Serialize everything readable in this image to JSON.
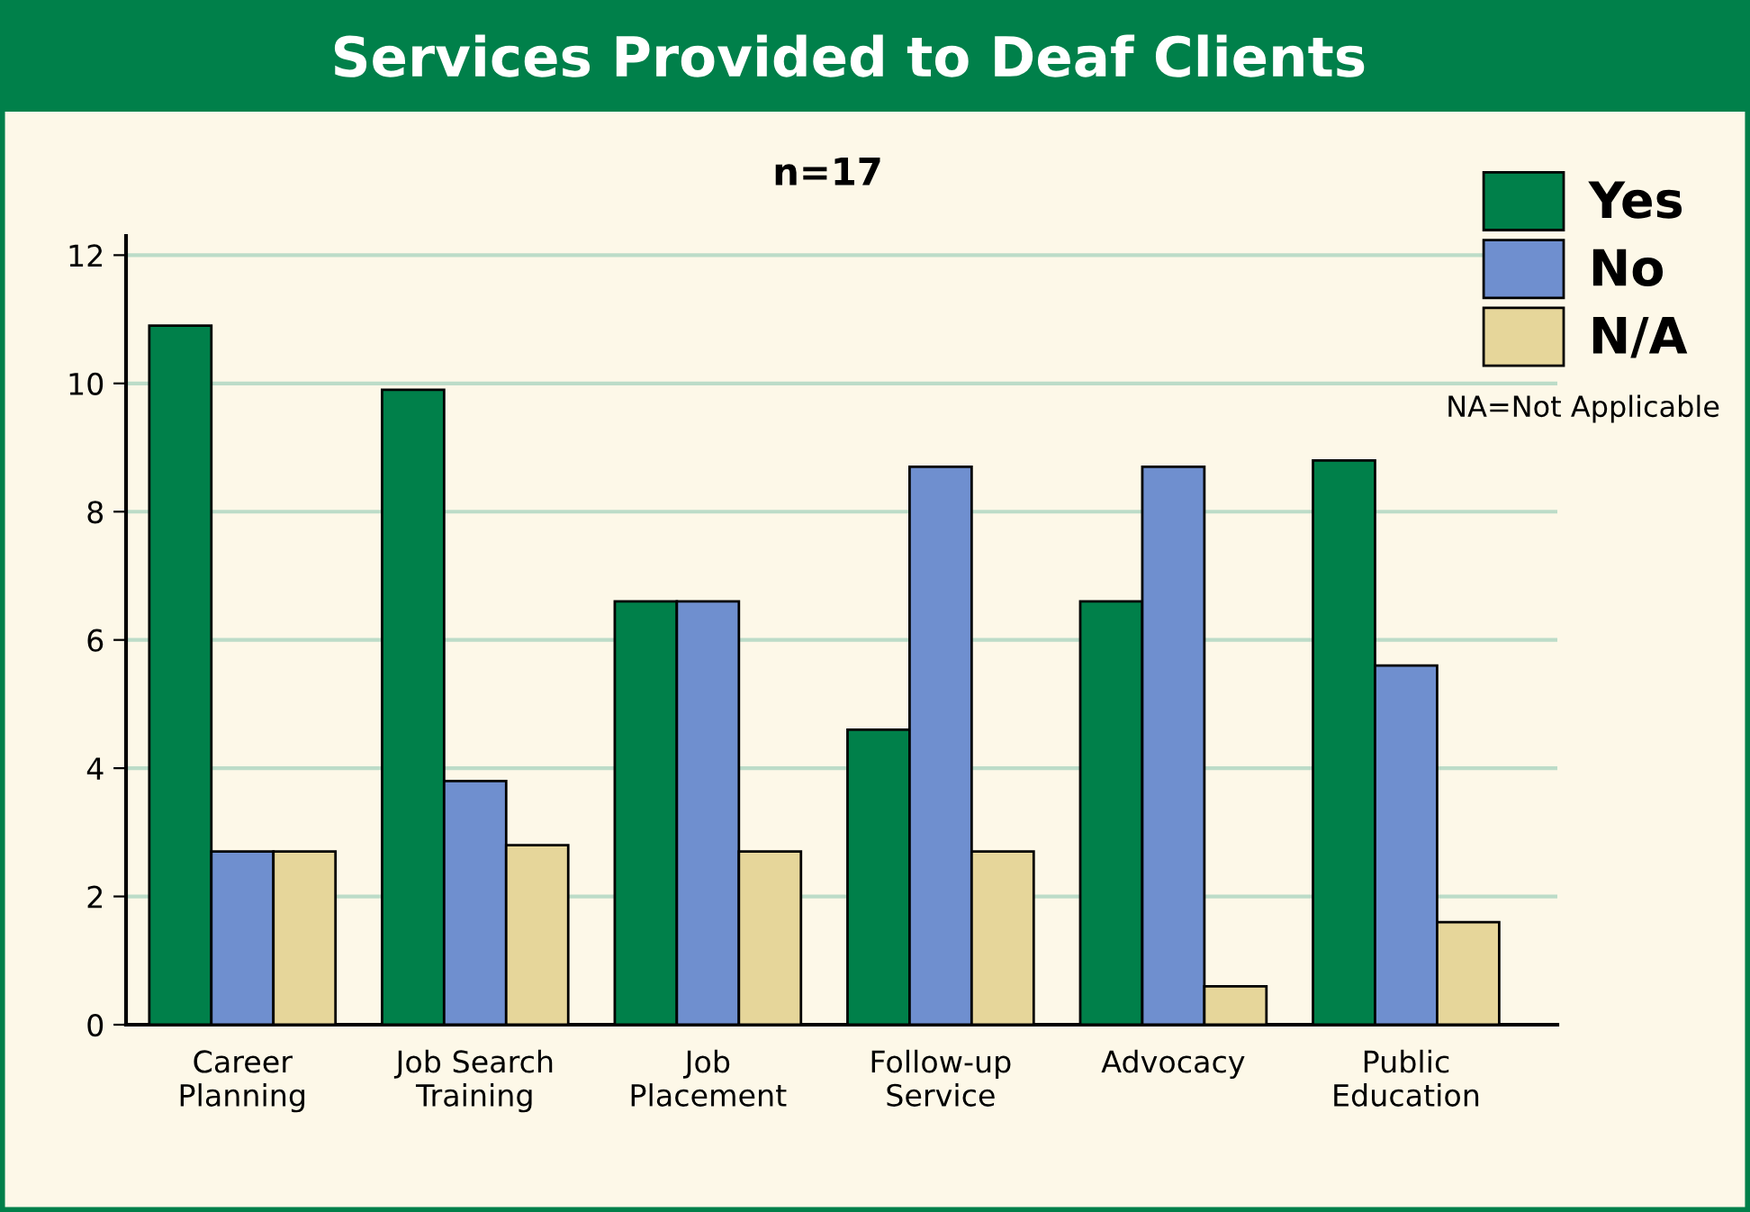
{
  "chart_data": {
    "type": "bar",
    "title": "Services Provided to Deaf Clients",
    "subtitle": "n=17",
    "categories": [
      "Career\nPlanning",
      "Job Search\nTraining",
      "Job\nPlacement",
      "Follow-up\nService",
      "Advocacy",
      "Public\nEducation"
    ],
    "series": [
      {
        "name": "Yes",
        "color": "#00804a",
        "values": [
          10.9,
          9.9,
          6.6,
          4.6,
          6.6,
          8.8
        ]
      },
      {
        "name": "No",
        "color": "#6f8fcf",
        "values": [
          2.7,
          3.8,
          6.6,
          8.7,
          8.7,
          5.6
        ]
      },
      {
        "name": "N/A",
        "color": "#e6d69a",
        "values": [
          2.7,
          2.8,
          2.7,
          2.7,
          0.6,
          1.6
        ]
      }
    ],
    "ylim": [
      0,
      12.3
    ],
    "yticks": [
      0,
      2,
      4,
      6,
      8,
      10,
      12
    ],
    "grid": "y",
    "legend": "top right",
    "annotations": [
      "NA=Not Applicable"
    ]
  }
}
